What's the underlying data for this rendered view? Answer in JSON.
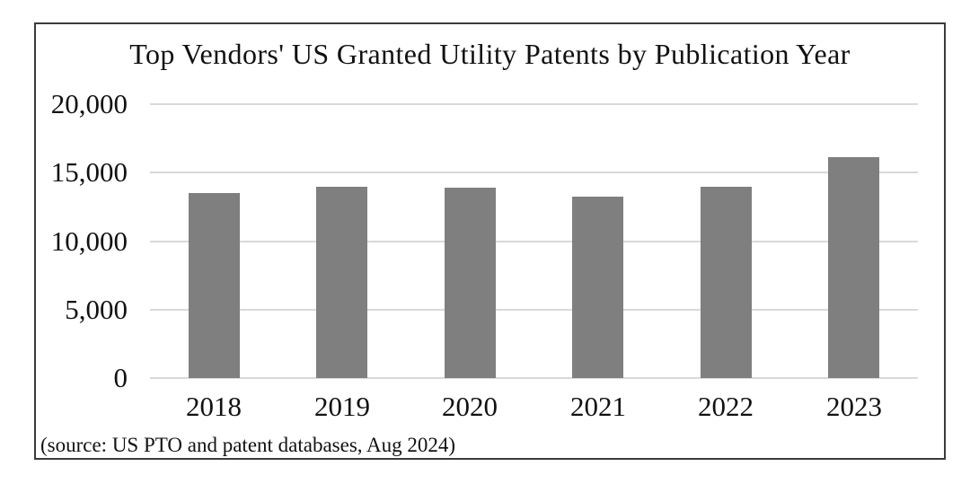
{
  "chart_data": {
    "type": "bar",
    "title": "Top Vendors' US Granted Utility Patents by Publication Year",
    "categories": [
      "2018",
      "2019",
      "2020",
      "2021",
      "2022",
      "2023"
    ],
    "values": [
      13500,
      13950,
      13900,
      13250,
      13950,
      16100
    ],
    "xlabel": "",
    "ylabel": "",
    "ylim": [
      0,
      20000
    ],
    "yticks": [
      0,
      5000,
      10000,
      15000,
      20000
    ],
    "ytick_labels": [
      "0",
      "5,000",
      "10,000",
      "15,000",
      "20,000"
    ],
    "grid": "horizontal",
    "legend": "none",
    "source_note": "(source: US PTO and patent databases, Aug 2024)",
    "colors": {
      "bar": "#7f7f7f",
      "gridline": "#d9d9d9",
      "frame_border": "#3b3b3b",
      "text": "#111111",
      "background": "#ffffff"
    }
  }
}
